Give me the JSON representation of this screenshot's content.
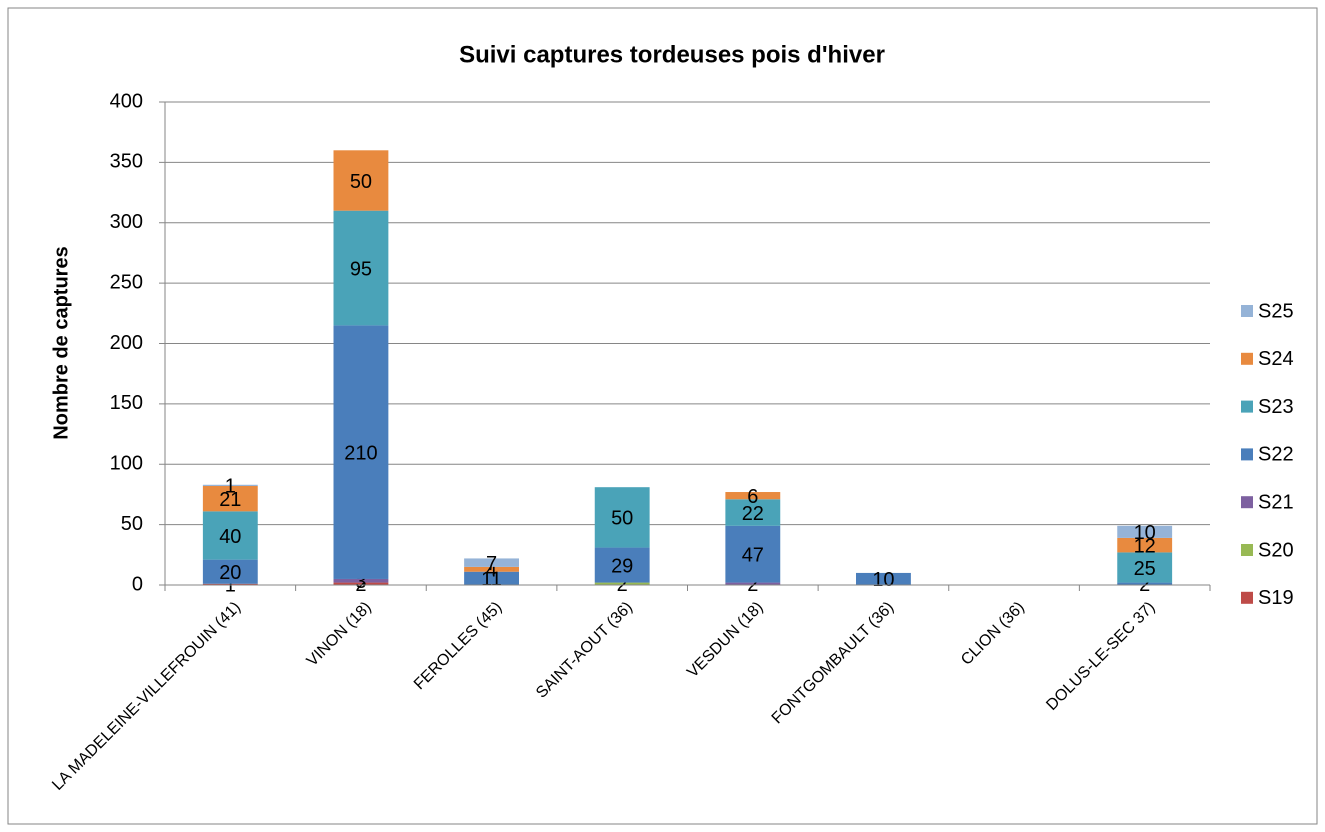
{
  "chart_data": {
    "type": "stacked_bar",
    "title": "Suivi captures tordeuses pois d'hiver",
    "y_label": "Nombre de captures",
    "categories": [
      "LA MADELEINE-VILLEFROUIN (41)",
      "VINON (18)",
      "FEROLLES (45)",
      "SAINT-AOUT (36)",
      "VESDUN (18)",
      "FONTGOMBAULT (36)",
      "CLION (36)",
      "DOLUS-LE-SEC 37)"
    ],
    "series": [
      {
        "name": "S19",
        "color": "#be4b48",
        "values": [
          1,
          2,
          null,
          null,
          null,
          null,
          null,
          null
        ]
      },
      {
        "name": "S20",
        "color": "#98b954",
        "values": [
          null,
          null,
          null,
          2,
          null,
          null,
          null,
          null
        ]
      },
      {
        "name": "S21",
        "color": "#7d60a0",
        "values": [
          null,
          3,
          null,
          null,
          2,
          null,
          null,
          null
        ]
      },
      {
        "name": "S22",
        "color": "#4a7ebb",
        "values": [
          20,
          210,
          11,
          29,
          47,
          10,
          null,
          2
        ]
      },
      {
        "name": "S23",
        "color": "#4aa3b8",
        "values": [
          40,
          95,
          null,
          50,
          22,
          null,
          null,
          25
        ]
      },
      {
        "name": "S24",
        "color": "#e88a3f",
        "values": [
          21,
          50,
          4,
          null,
          6,
          null,
          null,
          12
        ]
      },
      {
        "name": "S25",
        "color": "#95b3d7",
        "values": [
          1,
          null,
          7,
          null,
          null,
          null,
          null,
          10
        ]
      }
    ],
    "ylim": [
      0,
      400
    ],
    "yticks": [
      0,
      50,
      100,
      150,
      200,
      250,
      300,
      350,
      400
    ],
    "grid": true,
    "legend": "right"
  }
}
